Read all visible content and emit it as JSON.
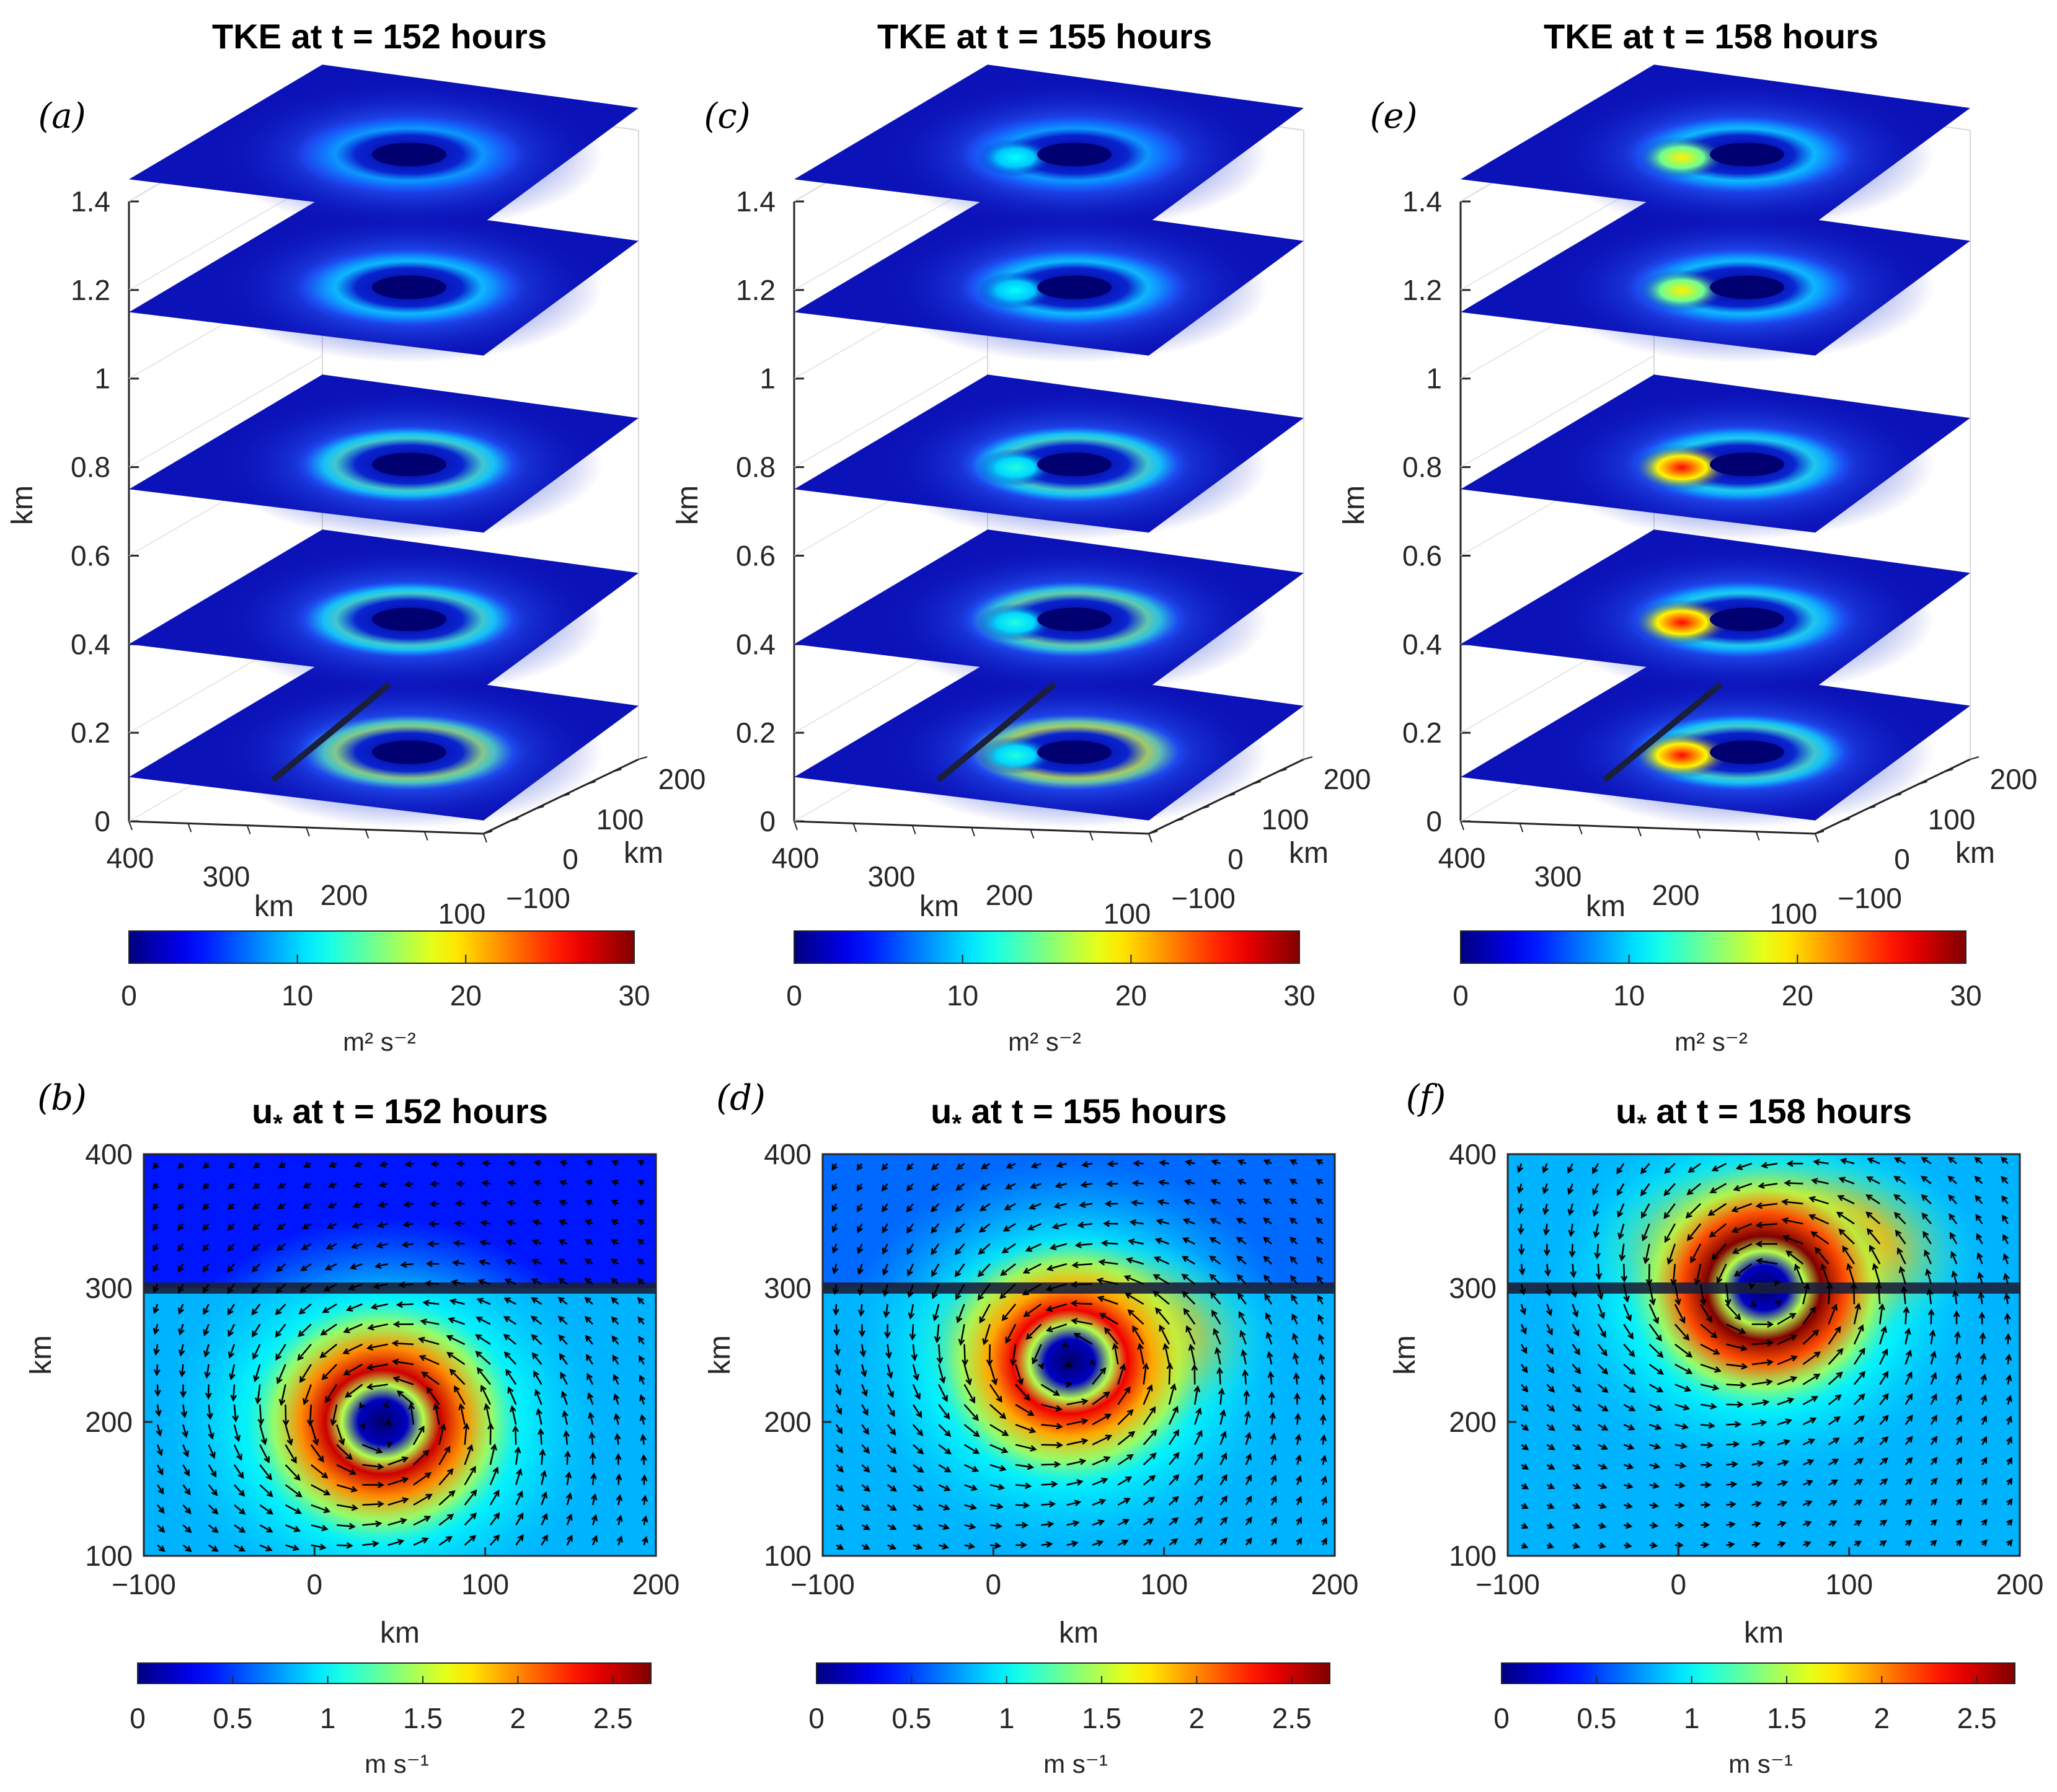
{
  "figure": {
    "colors": {
      "dark_blue": "#00008f",
      "mid_blue": "#0000ff",
      "cyan": "#00ffff",
      "yellow": "#ffff00",
      "red": "#ff0000",
      "dark_red": "#800000",
      "axis": "#262626",
      "arrow": "#000000",
      "front_line": "#1a1f3a"
    }
  },
  "chart_data": [
    {
      "type": "heatmap",
      "panel": "(a)",
      "title": "TKE at t = 152 hours",
      "zlabel": "km",
      "xlabel": "km",
      "ylabel": "km",
      "z_ticks": [
        "0",
        "0.2",
        "0.4",
        "0.6",
        "0.8",
        "1",
        "1.2",
        "1.4"
      ],
      "x_ticks": [
        "400",
        "300",
        "200",
        "100"
      ],
      "y_ticks": [
        "−100",
        "0",
        "100",
        "200"
      ],
      "levels_km": [
        0.1,
        0.4,
        0.75,
        1.15,
        1.45
      ],
      "ring_intensity": [
        0.55,
        0.45,
        0.45,
        0.35,
        0.3
      ],
      "hotspot": 0,
      "line_level_index": 0,
      "colorbar": {
        "min": 0,
        "max": 30,
        "ticks": [
          "0",
          "10",
          "20",
          "30"
        ],
        "unit": "m² s⁻²"
      }
    },
    {
      "type": "heatmap",
      "panel": "(c)",
      "title": "TKE at t = 155 hours",
      "zlabel": "km",
      "xlabel": "km",
      "ylabel": "km",
      "z_ticks": [
        "0",
        "0.2",
        "0.4",
        "0.6",
        "0.8",
        "1",
        "1.2",
        "1.4"
      ],
      "x_ticks": [
        "400",
        "300",
        "200",
        "100"
      ],
      "y_ticks": [
        "−100",
        "0",
        "100",
        "200"
      ],
      "levels_km": [
        0.1,
        0.4,
        0.75,
        1.15,
        1.45
      ],
      "ring_intensity": [
        0.6,
        0.5,
        0.45,
        0.35,
        0.3
      ],
      "hotspot": 0.1,
      "line_level_index": 0,
      "colorbar": {
        "min": 0,
        "max": 30,
        "ticks": [
          "0",
          "10",
          "20",
          "30"
        ],
        "unit": "m² s⁻²"
      }
    },
    {
      "type": "heatmap",
      "panel": "(e)",
      "title": "TKE at t = 158 hours",
      "zlabel": "km",
      "xlabel": "km",
      "ylabel": "km",
      "z_ticks": [
        "0",
        "0.2",
        "0.4",
        "0.6",
        "0.8",
        "1",
        "1.2",
        "1.4"
      ],
      "x_ticks": [
        "400",
        "300",
        "200",
        "100"
      ],
      "y_ticks": [
        "−100",
        "0",
        "100",
        "200"
      ],
      "levels_km": [
        0.1,
        0.4,
        0.75,
        1.15,
        1.45
      ],
      "ring_intensity": [
        0.45,
        0.4,
        0.4,
        0.35,
        0.35
      ],
      "hotspot": 0.95,
      "line_level_index": 0,
      "colorbar": {
        "min": 0,
        "max": 30,
        "ticks": [
          "0",
          "10",
          "20",
          "30"
        ],
        "unit": "m² s⁻²"
      }
    },
    {
      "type": "heatmap",
      "panel": "(b)",
      "title": "u* at t = 152 hours",
      "title_main": "u",
      "title_sub": "*",
      "title_rest": " at t = 152 hours",
      "xlabel": "km",
      "ylabel": "km",
      "xlim": [
        -100,
        200
      ],
      "ylim": [
        100,
        400
      ],
      "x_ticks": [
        "−100",
        "0",
        "100",
        "200"
      ],
      "y_ticks": [
        "100",
        "200",
        "300",
        "400"
      ],
      "vortex_center": [
        40,
        200
      ],
      "peak_ustar": 2.5,
      "front_y": 300,
      "upper_spread": 0.15,
      "colorbar": {
        "min": 0,
        "max": 2.7,
        "ticks": [
          "0",
          "0.5",
          "1",
          "1.5",
          "2",
          "2.5"
        ],
        "unit": "m s⁻¹"
      }
    },
    {
      "type": "heatmap",
      "panel": "(d)",
      "title": "u* at t = 155 hours",
      "title_main": "u",
      "title_sub": "*",
      "title_rest": " at t = 155 hours",
      "xlabel": "km",
      "ylabel": "km",
      "xlim": [
        -100,
        200
      ],
      "ylim": [
        100,
        400
      ],
      "x_ticks": [
        "−100",
        "0",
        "100",
        "200"
      ],
      "y_ticks": [
        "100",
        "200",
        "300",
        "400"
      ],
      "vortex_center": [
        45,
        245
      ],
      "peak_ustar": 2.4,
      "front_y": 300,
      "upper_spread": 0.6,
      "colorbar": {
        "min": 0,
        "max": 2.7,
        "ticks": [
          "0",
          "0.5",
          "1",
          "1.5",
          "2",
          "2.5"
        ],
        "unit": "m s⁻¹"
      }
    },
    {
      "type": "heatmap",
      "panel": "(f)",
      "title": "u* at t = 158 hours",
      "title_main": "u",
      "title_sub": "*",
      "title_rest": " at t = 158 hours",
      "xlabel": "km",
      "ylabel": "km",
      "xlim": [
        -100,
        200
      ],
      "ylim": [
        100,
        400
      ],
      "x_ticks": [
        "−100",
        "0",
        "100",
        "200"
      ],
      "y_ticks": [
        "100",
        "200",
        "300",
        "400"
      ],
      "vortex_center": [
        50,
        300
      ],
      "peak_ustar": 2.7,
      "front_y": 300,
      "upper_spread": 1.0,
      "colorbar": {
        "min": 0,
        "max": 2.7,
        "ticks": [
          "0",
          "0.5",
          "1",
          "1.5",
          "2",
          "2.5"
        ],
        "unit": "m s⁻¹"
      }
    }
  ]
}
